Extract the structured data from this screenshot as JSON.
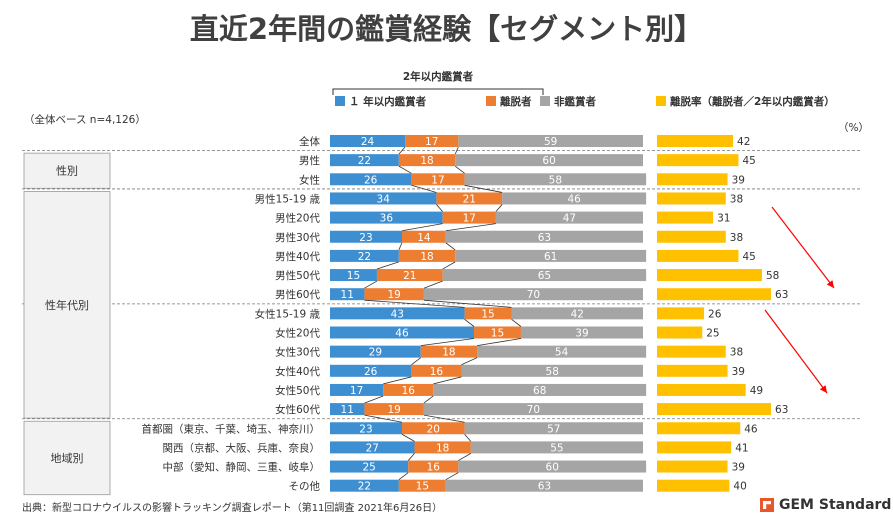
{
  "title": "直近2年間の鑑賞経験【セグメント別】",
  "base_note": "（全体ベース n=4,126）",
  "pct_unit": "（%）",
  "source_note": "出典：新型コロナウイルスの影響トラッキング調査レポート（第11回調査 2021年6月26日）",
  "logo_text": "GEM Standard",
  "bracket_label": "2年以内鑑賞者",
  "groups": [
    {
      "label": "性別",
      "from": 1,
      "to": 2
    },
    {
      "label": "性年代別",
      "from": 3,
      "to": 14
    },
    {
      "label": "地域別",
      "from": 15,
      "to": 18
    }
  ],
  "colors": {
    "recent": "#3d8fd1",
    "churn": "#ed7d31",
    "non": "#a5a5a5",
    "rate": "#ffc000",
    "arrow": "#ff0000"
  },
  "chart_data": [
    {
      "type": "bar",
      "stacked": true,
      "orientation": "horizontal",
      "categories": [
        "全体",
        "男性",
        "女性",
        "男性15-19 歳",
        "男性20代",
        "男性30代",
        "男性40代",
        "男性50代",
        "男性60代",
        "女性15-19 歳",
        "女性20代",
        "女性30代",
        "女性40代",
        "女性50代",
        "女性60代",
        "首都圏（東京、千葉、埼玉、神奈川）",
        "関西（京都、大阪、兵庫、奈良）",
        "中部（愛知、静岡、三重、岐阜）",
        "その他"
      ],
      "series": [
        {
          "name": "１ 年以内鑑賞者",
          "values": [
            24,
            22,
            26,
            34,
            36,
            23,
            22,
            15,
            11,
            43,
            46,
            29,
            26,
            17,
            11,
            23,
            27,
            25,
            22
          ]
        },
        {
          "name": "離脱者",
          "values": [
            17,
            18,
            17,
            21,
            17,
            14,
            18,
            21,
            19,
            15,
            15,
            18,
            16,
            16,
            19,
            20,
            18,
            16,
            15
          ]
        },
        {
          "name": "非鑑賞者",
          "values": [
            59,
            60,
            58,
            46,
            47,
            63,
            61,
            65,
            70,
            42,
            39,
            54,
            58,
            68,
            70,
            57,
            55,
            60,
            63
          ]
        }
      ],
      "xlim": [
        0,
        100
      ]
    },
    {
      "type": "bar",
      "orientation": "horizontal",
      "categories": [
        "全体",
        "男性",
        "女性",
        "男性15-19 歳",
        "男性20代",
        "男性30代",
        "男性40代",
        "男性50代",
        "男性60代",
        "女性15-19 歳",
        "女性20代",
        "女性30代",
        "女性40代",
        "女性50代",
        "女性60代",
        "首都圏（東京、千葉、埼玉、神奈川）",
        "関西（京都、大阪、兵庫、奈良）",
        "中部（愛知、静岡、三重、岐阜）",
        "その他"
      ],
      "series": [
        {
          "name": "離脱率（離脱者／2年以内鑑賞者）",
          "values": [
            42,
            45,
            39,
            38,
            31,
            38,
            45,
            58,
            63,
            26,
            25,
            38,
            39,
            49,
            63,
            46,
            41,
            39,
            40
          ]
        }
      ],
      "xlim": [
        0,
        70
      ]
    }
  ]
}
